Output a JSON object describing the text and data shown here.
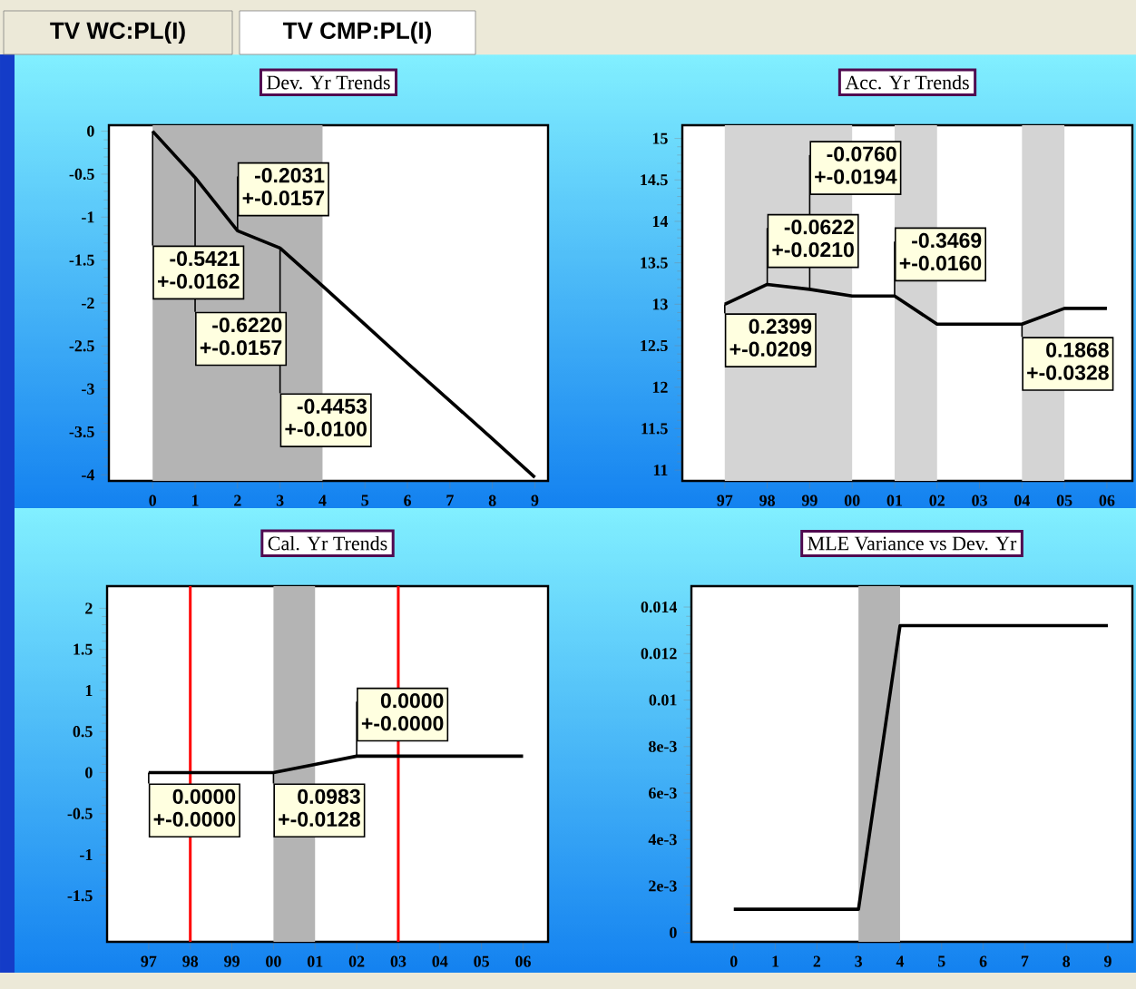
{
  "chart_data": [
    {
      "type": "other",
      "annotations": [
        "TV WC:PL(I)",
        "TV CMP:PL(I)"
      ]
    },
    {
      "type": "line",
      "title": "Dev. Yr Trends",
      "x": [
        0,
        1,
        2,
        3,
        4,
        5,
        6,
        7,
        8,
        9
      ],
      "values": [
        0,
        -0.54,
        -1.16,
        -1.36,
        -1.8,
        -2.25,
        -2.7,
        -3.14,
        -3.58,
        -4.03
      ],
      "color": "#000000",
      "xlim": [
        -1.03,
        9.31
      ],
      "ylim": [
        -4.07,
        0.07
      ],
      "xticks": [
        0,
        1,
        2,
        3,
        4,
        5,
        6,
        7,
        8,
        9
      ],
      "yticks": [
        0,
        -0.5,
        -1,
        -1.5,
        -2,
        -2.5,
        -3,
        -3.5,
        -4
      ],
      "bands": [
        {
          "axis": "x",
          "from": 0,
          "to": 4,
          "color": "#b4b4b4"
        }
      ],
      "annotations": [
        {
          "text": "-0.5421",
          "x": 0,
          "y": 0
        },
        "+-0.0162",
        {
          "text": "-0.6220",
          "x": 1,
          "y": -0.54
        },
        "+-0.0157",
        {
          "text": "-0.2031",
          "x": 2,
          "y": -1.16
        },
        "+-0.0157",
        {
          "text": "-0.4453",
          "x": 3,
          "y": -1.36
        },
        "+-0.0100"
      ]
    },
    {
      "type": "line",
      "title": "Acc. Yr Trends",
      "categories": [
        "97",
        "98",
        "99",
        "00",
        "01",
        "02",
        "03",
        "04",
        "05",
        "06"
      ],
      "values": [
        13.0,
        13.24,
        13.18,
        13.1,
        13.1,
        12.76,
        12.76,
        12.76,
        12.95,
        12.95
      ],
      "color": "#000000",
      "ylim": [
        10.87,
        15.16
      ],
      "yticks": [
        11,
        11.5,
        12,
        12.5,
        13,
        13.5,
        14,
        14.5,
        15
      ],
      "bands": [
        {
          "axis": "x",
          "from": "97",
          "to": "00",
          "color": "#d4d4d4"
        },
        {
          "axis": "x",
          "from": "01",
          "to": "02",
          "color": "#d4d4d4"
        },
        {
          "axis": "x",
          "from": "04",
          "to": "05",
          "color": "#d4d4d4"
        }
      ],
      "annotations": [
        {
          "text": "0.2399",
          "x": "97",
          "y": 13.0
        },
        "+-0.0209",
        {
          "text": "-0.0622",
          "x": "98",
          "y": 13.24
        },
        "+-0.0210",
        {
          "text": "-0.0760",
          "x": "99",
          "y": 13.18
        },
        "+-0.0194",
        {
          "text": "-0.3469",
          "x": "01",
          "y": 13.1
        },
        "+-0.0160",
        {
          "text": "0.1868",
          "x": "04",
          "y": 12.76
        },
        "+-0.0328"
      ]
    },
    {
      "type": "line",
      "title": "Cal. Yr Trends",
      "categories": [
        "97",
        "98",
        "99",
        "00",
        "01",
        "02",
        "03",
        "04",
        "05",
        "06"
      ],
      "values": [
        0,
        0,
        0,
        0,
        0.1,
        0.2,
        0.2,
        0.2,
        0.2,
        0.2
      ],
      "color": "#000000",
      "ylim": [
        -2.06,
        2.27
      ],
      "yticks": [
        -1.5,
        -1,
        -0.5,
        0,
        0.5,
        1,
        1.5,
        2
      ],
      "bands": [
        {
          "axis": "x",
          "from": "00",
          "to": "01",
          "color": "#b4b4b4"
        }
      ],
      "ref_lines": [
        {
          "axis": "x",
          "value": "98",
          "color": "#ff0000"
        },
        {
          "axis": "x",
          "value": "03",
          "color": "#ff0000"
        }
      ],
      "annotations": [
        {
          "text": "0.0000",
          "x": "97",
          "y": 0
        },
        "+-0.0000",
        {
          "text": "0.0983",
          "x": "00",
          "y": 0
        },
        "+-0.0128",
        {
          "text": "0.0000",
          "x": "02",
          "y": 0.2
        },
        "+-0.0000"
      ]
    },
    {
      "type": "line",
      "title": "MLE Variance vs Dev. Yr",
      "x": [
        0,
        1,
        2,
        3,
        4,
        5,
        6,
        7,
        8,
        9
      ],
      "values": [
        0.001,
        0.001,
        0.001,
        0.001,
        0.0132,
        0.0132,
        0.0132,
        0.0132,
        0.0132,
        0.0132
      ],
      "color": "#000000",
      "xlim": [
        -1.02,
        9.59
      ],
      "ylim": [
        -0.0004,
        0.0149
      ],
      "xticks": [
        0,
        1,
        2,
        3,
        4,
        5,
        6,
        7,
        8,
        9
      ],
      "yticks": [
        0,
        {
          "value": 0.002,
          "label": "2e-3"
        },
        {
          "value": 0.004,
          "label": "4e-3"
        },
        {
          "value": 0.006,
          "label": "6e-3"
        },
        {
          "value": 0.008,
          "label": "8e-3"
        },
        0.01,
        0.012,
        0.014
      ],
      "bands": [
        {
          "axis": "x",
          "from": 3,
          "to": 4,
          "color": "#b4b4b4"
        }
      ]
    }
  ]
}
